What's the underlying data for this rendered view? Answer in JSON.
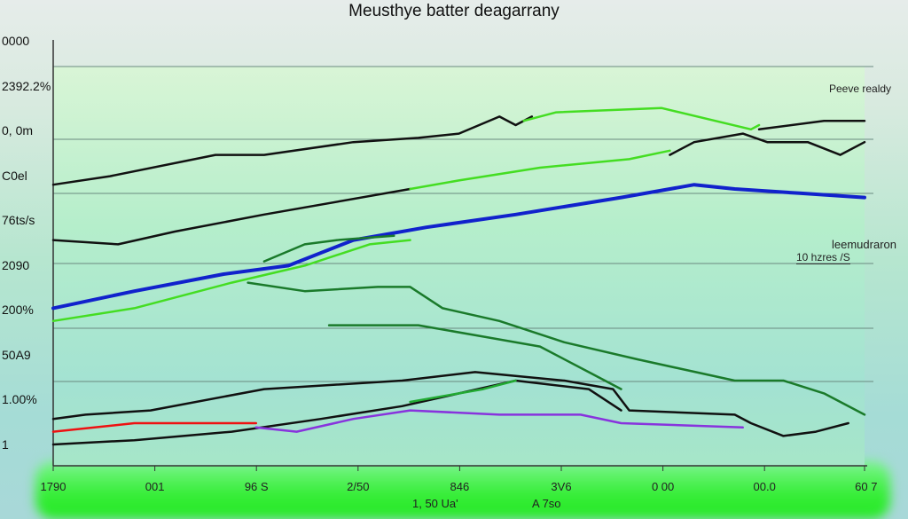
{
  "chart_data": {
    "type": "line",
    "title": "Meusthye batter deagarrany",
    "y_tick_labels": [
      "0000",
      "2392.2%",
      "0, 0m",
      "C0el",
      "76ts/s",
      "2090",
      "200%",
      "50A9",
      "1.00%",
      "1"
    ],
    "x_tick_labels": [
      "1790",
      "001",
      "96 S",
      "2/50",
      "846",
      "3V6",
      "0 00",
      "00.0",
      "60 7"
    ],
    "x_sublabels": [
      "1, 50 Ua'",
      "A 7so"
    ],
    "annotations": [
      "Peeve realdy",
      "leemudraron",
      "10 hzres /S"
    ],
    "xlim": [
      0,
      100
    ],
    "ylim": [
      0,
      100
    ],
    "grid": true,
    "series": [
      {
        "name": "black-top",
        "color": "#111111",
        "points": [
          [
            0,
            66
          ],
          [
            7,
            68
          ],
          [
            20,
            73
          ],
          [
            26,
            73
          ],
          [
            37,
            76
          ],
          [
            45,
            77
          ],
          [
            50,
            78
          ],
          [
            55,
            82
          ],
          [
            57,
            80
          ],
          [
            59,
            82
          ]
        ]
      },
      {
        "name": "green-top",
        "color": "#44dd22",
        "points": [
          [
            58,
            81
          ],
          [
            62,
            83
          ],
          [
            75,
            84
          ],
          [
            86,
            79
          ],
          [
            87,
            80
          ]
        ]
      },
      {
        "name": "black-top-right",
        "color": "#111111",
        "points": [
          [
            87,
            79
          ],
          [
            95,
            81
          ],
          [
            100,
            81
          ]
        ]
      },
      {
        "name": "black-second",
        "color": "#111111",
        "points": [
          [
            0,
            53
          ],
          [
            8,
            52
          ],
          [
            15,
            55
          ],
          [
            26,
            59
          ],
          [
            44,
            65
          ]
        ]
      },
      {
        "name": "black-second-right",
        "color": "#111111",
        "points": [
          [
            76,
            73
          ],
          [
            79,
            76
          ],
          [
            85,
            78
          ],
          [
            88,
            76
          ],
          [
            93,
            76
          ],
          [
            97,
            73
          ],
          [
            100,
            76
          ]
        ]
      },
      {
        "name": "green-second",
        "color": "#44dd22",
        "points": [
          [
            44,
            65
          ],
          [
            50,
            67
          ],
          [
            60,
            70
          ],
          [
            71,
            72
          ],
          [
            76,
            74
          ]
        ]
      },
      {
        "name": "blue",
        "color": "#1122cc",
        "points": [
          [
            0,
            37
          ],
          [
            10,
            41
          ],
          [
            21,
            45
          ],
          [
            29,
            47
          ],
          [
            37,
            53
          ],
          [
            46,
            56
          ],
          [
            57,
            59
          ],
          [
            70,
            63
          ],
          [
            79,
            66
          ],
          [
            84,
            65
          ],
          [
            92,
            64
          ],
          [
            100,
            63
          ]
        ]
      },
      {
        "name": "bright-green",
        "color": "#44dd22",
        "points": [
          [
            0,
            34
          ],
          [
            10,
            37
          ],
          [
            22,
            43
          ],
          [
            31,
            47
          ],
          [
            39,
            52
          ],
          [
            44,
            53
          ]
        ]
      },
      {
        "name": "dark-green-1",
        "color": "#1a7a2a",
        "points": [
          [
            24,
            43
          ],
          [
            31,
            41
          ],
          [
            40,
            42
          ],
          [
            44,
            42
          ],
          [
            48,
            37
          ],
          [
            55,
            34
          ],
          [
            63,
            29
          ],
          [
            72,
            25
          ],
          [
            84,
            20
          ],
          [
            90,
            20
          ],
          [
            95,
            17
          ],
          [
            100,
            12
          ]
        ]
      },
      {
        "name": "dark-green-2",
        "color": "#1a7a2a",
        "points": [
          [
            26,
            48
          ],
          [
            31,
            52
          ],
          [
            35,
            53
          ],
          [
            42,
            54
          ]
        ]
      },
      {
        "name": "dark-green-3",
        "color": "#1a7a2a",
        "points": [
          [
            34,
            33
          ],
          [
            45,
            33
          ],
          [
            60,
            28
          ],
          [
            66,
            22
          ],
          [
            70,
            18
          ]
        ]
      },
      {
        "name": "black-lower-1",
        "color": "#111111",
        "points": [
          [
            0,
            11
          ],
          [
            4,
            12
          ],
          [
            12,
            13
          ],
          [
            26,
            18
          ],
          [
            43,
            20
          ],
          [
            52,
            22
          ],
          [
            63,
            20
          ],
          [
            69,
            18
          ],
          [
            71,
            13
          ],
          [
            84,
            12
          ],
          [
            86,
            10
          ],
          [
            90,
            7
          ],
          [
            94,
            8
          ],
          [
            98,
            10
          ]
        ]
      },
      {
        "name": "black-lower-2",
        "color": "#111111",
        "points": [
          [
            0,
            5
          ],
          [
            10,
            6
          ],
          [
            22,
            8
          ],
          [
            33,
            11
          ],
          [
            43,
            14
          ],
          [
            57,
            20
          ],
          [
            66,
            18
          ],
          [
            70,
            13
          ]
        ]
      },
      {
        "name": "red",
        "color": "#ee1111",
        "points": [
          [
            0,
            8
          ],
          [
            10,
            10
          ],
          [
            25,
            10
          ]
        ]
      },
      {
        "name": "purple",
        "color": "#8833dd",
        "points": [
          [
            25,
            9
          ],
          [
            30,
            8
          ],
          [
            37,
            11
          ],
          [
            44,
            13
          ],
          [
            55,
            12
          ],
          [
            65,
            12
          ],
          [
            70,
            10
          ],
          [
            85,
            9
          ]
        ]
      },
      {
        "name": "green-lower",
        "color": "#22aa33",
        "points": [
          [
            44,
            15
          ],
          [
            53,
            18
          ],
          [
            57,
            20
          ]
        ]
      }
    ]
  }
}
